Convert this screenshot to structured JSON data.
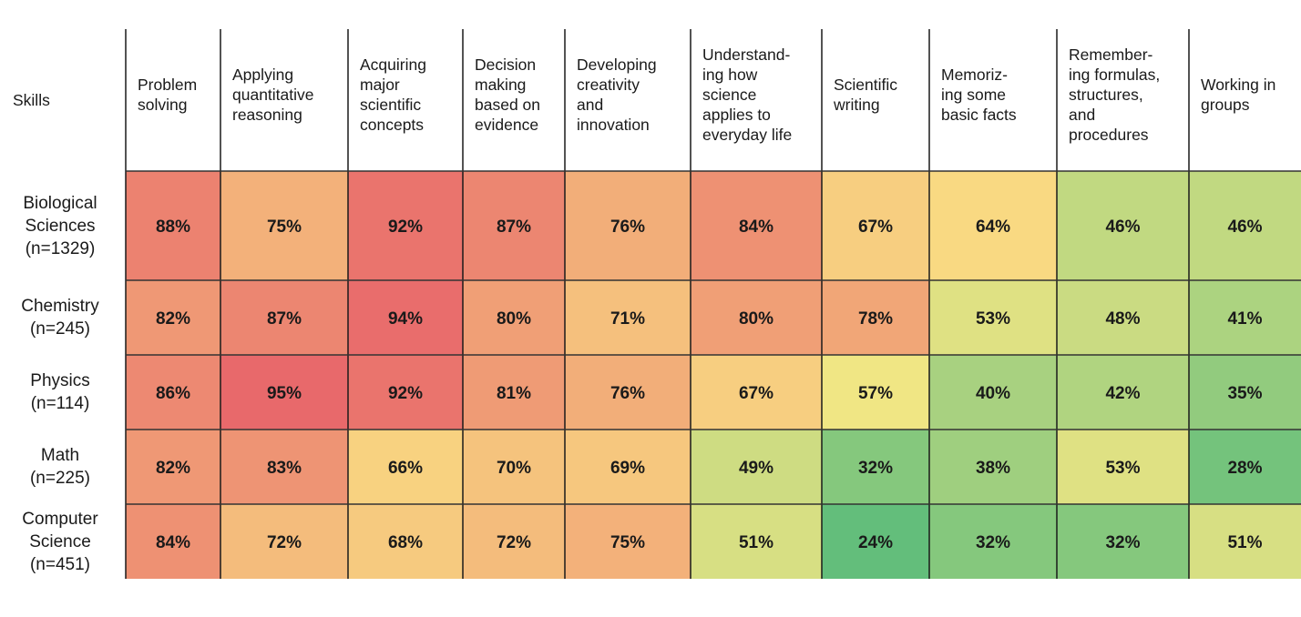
{
  "chart_data": {
    "type": "heatmap",
    "corner_label": "Skills",
    "columns": [
      [
        "Problem",
        "solving"
      ],
      [
        "Applying",
        "quantitative",
        "reasoning"
      ],
      [
        "Acquiring",
        "major",
        "scientific",
        "concepts"
      ],
      [
        "Decision",
        "making",
        "based on",
        "evidence"
      ],
      [
        "Developing",
        "creativity",
        "and",
        "innovation"
      ],
      [
        "Understand-",
        "ing how",
        "science",
        "applies to",
        "everyday life"
      ],
      [
        "Scientific",
        "writing"
      ],
      [
        "Memoriz-",
        "ing some",
        "basic facts"
      ],
      [
        "Remember-",
        "ing formulas,",
        "structures,",
        "and",
        "procedures"
      ],
      [
        "Working in",
        "groups"
      ]
    ],
    "rows": [
      [
        "Biological",
        "Sciences",
        "(n=1329)"
      ],
      [
        "Chemistry",
        "(n=245)"
      ],
      [
        "Physics",
        "(n=114)"
      ],
      [
        "Math",
        "(n=225)"
      ],
      [
        "Computer",
        "Science",
        "(n=451)"
      ]
    ],
    "values": [
      [
        88,
        75,
        92,
        87,
        76,
        84,
        67,
        64,
        46,
        46
      ],
      [
        82,
        87,
        94,
        80,
        71,
        80,
        78,
        53,
        48,
        41
      ],
      [
        86,
        95,
        92,
        81,
        76,
        67,
        57,
        40,
        42,
        35
      ],
      [
        82,
        83,
        66,
        70,
        69,
        49,
        32,
        38,
        53,
        28
      ],
      [
        84,
        72,
        68,
        72,
        75,
        51,
        24,
        32,
        32,
        51
      ]
    ],
    "value_suffix": "%",
    "color_scale": {
      "low_color": "#63be7b",
      "mid_color": "#fbe985",
      "high_color": "#e8696b"
    }
  }
}
